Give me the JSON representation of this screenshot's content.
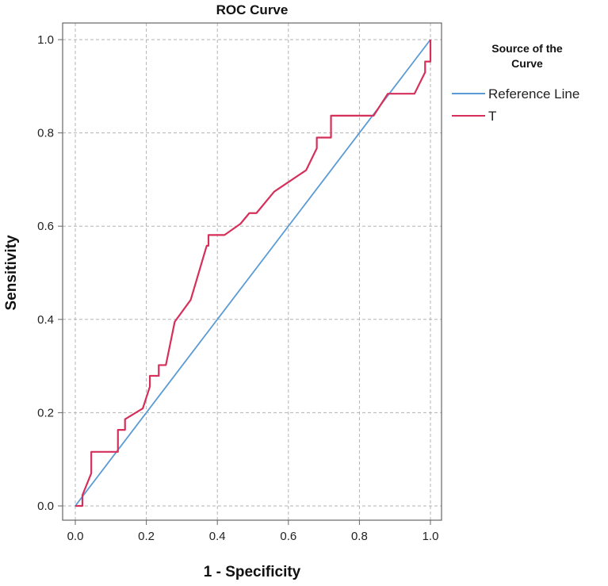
{
  "chart_data": {
    "type": "line",
    "title": "ROC Curve",
    "xlabel": "1 - Specificity",
    "ylabel": "Sensitivity",
    "xlim": [
      0.0,
      1.0
    ],
    "ylim": [
      0.0,
      1.0
    ],
    "xticks": [
      "0.0",
      "0.2",
      "0.4",
      "0.6",
      "0.8",
      "1.0"
    ],
    "yticks": [
      "0.0",
      "0.2",
      "0.4",
      "0.6",
      "0.8",
      "1.0"
    ],
    "grid": true,
    "legend": {
      "title_line1": "Source of the",
      "title_line2": "Curve",
      "position": "right"
    },
    "series": [
      {
        "name": "Reference Line",
        "color": "#5b9bd5",
        "x": [
          0.0,
          1.0
        ],
        "y": [
          0.0,
          1.0
        ]
      },
      {
        "name": "T",
        "color": "#d62f5a",
        "x": [
          0.0,
          0.02,
          0.02,
          0.045,
          0.045,
          0.12,
          0.12,
          0.14,
          0.14,
          0.19,
          0.21,
          0.21,
          0.235,
          0.235,
          0.255,
          0.28,
          0.325,
          0.37,
          0.375,
          0.375,
          0.42,
          0.465,
          0.49,
          0.49,
          0.51,
          0.56,
          0.65,
          0.68,
          0.68,
          0.72,
          0.72,
          0.84,
          0.88,
          0.955,
          0.97,
          0.97,
          0.985,
          0.985,
          1.0,
          1.0
        ],
        "y": [
          0.0,
          0.0,
          0.023,
          0.07,
          0.116,
          0.116,
          0.163,
          0.163,
          0.186,
          0.209,
          0.256,
          0.279,
          0.279,
          0.302,
          0.302,
          0.395,
          0.442,
          0.558,
          0.558,
          0.581,
          0.581,
          0.605,
          0.628,
          0.628,
          0.628,
          0.674,
          0.72,
          0.767,
          0.79,
          0.79,
          0.837,
          0.837,
          0.884,
          0.884,
          0.907,
          0.907,
          0.93,
          0.953,
          0.953,
          1.0
        ]
      }
    ]
  }
}
